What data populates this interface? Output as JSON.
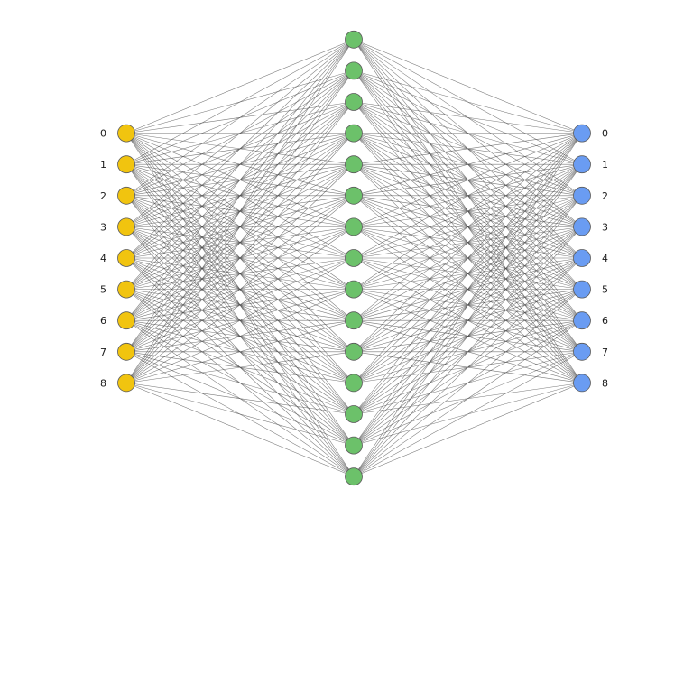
{
  "diagram": {
    "colors": {
      "input": "#f1c40f",
      "hidden": "#6cc16a",
      "output": "#6a9cf2",
      "edge": "#4a4a4a"
    },
    "layers": [
      {
        "id": "input",
        "labels": [
          "0",
          "1",
          "2",
          "3",
          "4",
          "5",
          "6",
          "7",
          "8"
        ],
        "label_side": "left"
      },
      {
        "id": "hidden",
        "count": 15,
        "labels": []
      },
      {
        "id": "output",
        "labels": [
          "0",
          "1",
          "2",
          "3",
          "4",
          "5",
          "6",
          "7",
          "8"
        ],
        "label_side": "right"
      }
    ],
    "connectivity": "fully-connected"
  }
}
